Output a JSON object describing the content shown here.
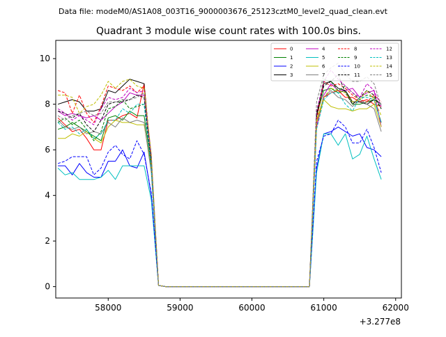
{
  "figure": {
    "suptitle": "Data file: modeM0/AS1A08_003T16_9000003676_25123cztM0_level2_quad_clean.evt",
    "title": "Quadrant 3 module wise count rates with 100.0s bins.",
    "offset_label": "+3.277e8"
  },
  "chart_data": {
    "type": "line",
    "title": "Quadrant 3 module wise count rates with 100.0s bins.",
    "xlabel": "",
    "ylabel": "",
    "x_offset": 327700000,
    "xlim": [
      57270,
      62080
    ],
    "ylim": [
      -0.5,
      10.8
    ],
    "xticks": [
      58000,
      59000,
      60000,
      61000,
      62000
    ],
    "xtick_labels": [
      "58000",
      "59000",
      "60000",
      "61000",
      "62000"
    ],
    "yticks": [
      0,
      2,
      4,
      6,
      8,
      10
    ],
    "ytick_labels": [
      "0",
      "2",
      "4",
      "6",
      "8",
      "10"
    ],
    "legend_position": "top-right",
    "grid": false,
    "x": [
      57300,
      57400,
      57500,
      57600,
      57700,
      57800,
      57900,
      58000,
      58100,
      58200,
      58300,
      58400,
      58500,
      58600,
      58700,
      58800,
      58900,
      59000,
      59100,
      59200,
      59300,
      59400,
      59500,
      59600,
      59700,
      59800,
      59900,
      60000,
      60100,
      60200,
      60300,
      60400,
      60500,
      60600,
      60700,
      60800,
      60900,
      61000,
      61100,
      61200,
      61300,
      61400,
      61500,
      61600,
      61700,
      61800
    ],
    "series": [
      {
        "name": "0",
        "color": "#ff0000",
        "dash": false,
        "values": [
          7.4,
          7.1,
          6.8,
          6.9,
          6.5,
          6.0,
          6.0,
          7.3,
          7.3,
          7.5,
          7.6,
          7.4,
          8.9,
          5.5,
          0.05,
          0,
          0,
          0,
          0,
          0,
          0,
          0,
          0,
          0,
          0,
          0,
          0,
          0,
          0,
          0,
          0,
          0,
          0,
          0,
          0,
          0,
          7.0,
          8.3,
          8.5,
          8.6,
          8.3,
          8.3,
          8.1,
          8.2,
          8.0,
          7.9
        ]
      },
      {
        "name": "1",
        "color": "#008000",
        "dash": false,
        "values": [
          6.9,
          7.0,
          7.2,
          7.0,
          6.8,
          6.6,
          6.4,
          7.4,
          7.5,
          7.3,
          7.7,
          7.5,
          7.5,
          5.3,
          0.05,
          0,
          0,
          0,
          0,
          0,
          0,
          0,
          0,
          0,
          0,
          0,
          0,
          0,
          0,
          0,
          0,
          0,
          0,
          0,
          0,
          0,
          7.5,
          8.6,
          8.7,
          8.5,
          8.6,
          8.0,
          8.0,
          8.1,
          8.2,
          7.2
        ]
      },
      {
        "name": "2",
        "color": "#0000ff",
        "dash": false,
        "values": [
          5.3,
          5.3,
          4.9,
          5.4,
          5.0,
          4.8,
          4.8,
          5.5,
          5.5,
          6.0,
          5.3,
          5.2,
          5.9,
          4.0,
          0.05,
          0,
          0,
          0,
          0,
          0,
          0,
          0,
          0,
          0,
          0,
          0,
          0,
          0,
          0,
          0,
          0,
          0,
          0,
          0,
          0,
          0,
          5.2,
          6.7,
          6.8,
          7.0,
          6.8,
          6.6,
          6.7,
          6.1,
          6.0,
          5.7
        ]
      },
      {
        "name": "3",
        "color": "#000000",
        "dash": false,
        "values": [
          8.0,
          8.1,
          8.2,
          8.1,
          7.7,
          7.7,
          7.8,
          8.6,
          8.5,
          8.8,
          9.1,
          9.0,
          8.9,
          5.5,
          0.05,
          0,
          0,
          0,
          0,
          0,
          0,
          0,
          0,
          0,
          0,
          0,
          0,
          0,
          0,
          0,
          0,
          0,
          0,
          0,
          0,
          0,
          7.5,
          8.9,
          9.0,
          8.7,
          8.6,
          8.1,
          8.1,
          8.0,
          8.2,
          8.0
        ]
      },
      {
        "name": "4",
        "color": "#bf00bf",
        "dash": false,
        "values": [
          7.7,
          7.5,
          7.6,
          7.5,
          7.4,
          7.5,
          7.3,
          7.6,
          7.9,
          8.1,
          8.5,
          8.4,
          8.4,
          5.6,
          0.05,
          0,
          0,
          0,
          0,
          0,
          0,
          0,
          0,
          0,
          0,
          0,
          0,
          0,
          0,
          0,
          0,
          0,
          0,
          0,
          0,
          0,
          7.0,
          8.4,
          8.9,
          8.6,
          8.6,
          8.7,
          8.3,
          8.5,
          8.6,
          7.0
        ]
      },
      {
        "name": "5",
        "color": "#00bfbf",
        "dash": false,
        "values": [
          5.2,
          4.9,
          5.0,
          4.7,
          4.7,
          4.7,
          4.8,
          5.1,
          4.7,
          5.3,
          5.3,
          5.3,
          5.3,
          3.8,
          0.05,
          0,
          0,
          0,
          0,
          0,
          0,
          0,
          0,
          0,
          0,
          0,
          0,
          0,
          0,
          0,
          0,
          0,
          0,
          0,
          0,
          0,
          5.0,
          6.7,
          6.7,
          6.2,
          6.7,
          5.6,
          5.8,
          6.6,
          5.6,
          4.7
        ]
      },
      {
        "name": "6",
        "color": "#bfbf00",
        "dash": false,
        "values": [
          6.5,
          6.5,
          6.7,
          6.6,
          6.8,
          6.5,
          6.3,
          7.0,
          7.3,
          7.2,
          7.2,
          7.1,
          7.1,
          5.2,
          0.05,
          0,
          0,
          0,
          0,
          0,
          0,
          0,
          0,
          0,
          0,
          0,
          0,
          0,
          0,
          0,
          0,
          0,
          0,
          0,
          0,
          0,
          7.2,
          8.2,
          7.9,
          7.8,
          7.8,
          7.7,
          7.8,
          7.8,
          8.0,
          7.0
        ]
      },
      {
        "name": "7",
        "color": "#7f7f7f",
        "dash": false,
        "values": [
          7.3,
          7.0,
          6.9,
          7.0,
          6.7,
          6.8,
          6.7,
          7.2,
          7.0,
          7.4,
          7.2,
          7.3,
          7.2,
          5.0,
          0.05,
          0,
          0,
          0,
          0,
          0,
          0,
          0,
          0,
          0,
          0,
          0,
          0,
          0,
          0,
          0,
          0,
          0,
          0,
          0,
          0,
          0,
          7.3,
          8.3,
          8.6,
          8.3,
          8.2,
          7.9,
          8.2,
          8.0,
          7.8,
          6.8
        ]
      },
      {
        "name": "8",
        "color": "#ff0000",
        "dash": true,
        "values": [
          8.6,
          8.5,
          7.6,
          8.4,
          7.6,
          7.2,
          7.9,
          8.8,
          8.7,
          8.6,
          8.8,
          8.5,
          8.8,
          5.6,
          0.05,
          0,
          0,
          0,
          0,
          0,
          0,
          0,
          0,
          0,
          0,
          0,
          0,
          0,
          0,
          0,
          0,
          0,
          0,
          0,
          0,
          0,
          7.3,
          9.0,
          8.8,
          8.9,
          8.7,
          8.4,
          8.2,
          8.1,
          8.4,
          8.1
        ]
      },
      {
        "name": "9",
        "color": "#008000",
        "dash": true,
        "values": [
          7.2,
          7.4,
          7.1,
          7.3,
          6.9,
          6.4,
          6.8,
          7.8,
          7.9,
          8.2,
          7.8,
          7.9,
          8.0,
          5.4,
          0.05,
          0,
          0,
          0,
          0,
          0,
          0,
          0,
          0,
          0,
          0,
          0,
          0,
          0,
          0,
          0,
          0,
          0,
          0,
          0,
          0,
          0,
          7.6,
          9.1,
          9.0,
          8.6,
          8.8,
          8.5,
          8.2,
          8.4,
          8.3,
          7.8
        ]
      },
      {
        "name": "10",
        "color": "#0000ff",
        "dash": true,
        "values": [
          5.4,
          5.5,
          5.7,
          5.7,
          5.7,
          4.9,
          5.2,
          5.9,
          6.2,
          5.8,
          5.6,
          6.4,
          5.8,
          4.1,
          0.05,
          0,
          0,
          0,
          0,
          0,
          0,
          0,
          0,
          0,
          0,
          0,
          0,
          0,
          0,
          0,
          0,
          0,
          0,
          0,
          0,
          0,
          5.5,
          6.6,
          6.7,
          7.3,
          7.0,
          6.3,
          6.3,
          6.9,
          6.1,
          5.0
        ]
      },
      {
        "name": "11",
        "color": "#000000",
        "dash": true,
        "values": [
          7.7,
          7.6,
          7.4,
          7.6,
          7.1,
          6.8,
          7.3,
          8.0,
          8.1,
          8.1,
          8.2,
          8.4,
          8.3,
          5.3,
          0.05,
          0,
          0,
          0,
          0,
          0,
          0,
          0,
          0,
          0,
          0,
          0,
          0,
          0,
          0,
          0,
          0,
          0,
          0,
          0,
          0,
          0,
          7.6,
          8.8,
          9.0,
          9.3,
          8.5,
          8.0,
          8.3,
          8.6,
          8.4,
          7.8
        ]
      },
      {
        "name": "12",
        "color": "#bf00bf",
        "dash": true,
        "values": [
          7.8,
          7.6,
          7.3,
          7.5,
          7.3,
          7.1,
          7.8,
          8.3,
          8.2,
          8.3,
          8.7,
          8.5,
          8.6,
          5.8,
          0.05,
          0,
          0,
          0,
          0,
          0,
          0,
          0,
          0,
          0,
          0,
          0,
          0,
          0,
          0,
          0,
          0,
          0,
          0,
          0,
          0,
          0,
          7.7,
          9.0,
          9.5,
          9.1,
          8.8,
          8.5,
          8.3,
          8.9,
          8.6,
          7.9
        ]
      },
      {
        "name": "13",
        "color": "#00bfbf",
        "dash": true,
        "values": [
          7.2,
          6.9,
          7.0,
          6.7,
          6.9,
          6.5,
          6.7,
          7.3,
          7.3,
          7.8,
          7.6,
          8.0,
          8.0,
          5.2,
          0.05,
          0,
          0,
          0,
          0,
          0,
          0,
          0,
          0,
          0,
          0,
          0,
          0,
          0,
          0,
          0,
          0,
          0,
          0,
          0,
          0,
          0,
          6.9,
          8.2,
          8.5,
          8.5,
          8.0,
          7.7,
          8.3,
          8.3,
          8.2,
          7.2
        ]
      },
      {
        "name": "14",
        "color": "#bfbf00",
        "dash": true,
        "values": [
          8.4,
          8.4,
          8.3,
          7.6,
          7.9,
          8.0,
          8.4,
          9.0,
          8.7,
          9.0,
          9.1,
          8.8,
          8.7,
          5.8,
          0.05,
          0,
          0,
          0,
          0,
          0,
          0,
          0,
          0,
          0,
          0,
          0,
          0,
          0,
          0,
          0,
          0,
          0,
          0,
          0,
          0,
          0,
          7.3,
          8.3,
          8.7,
          8.6,
          8.5,
          8.1,
          8.2,
          8.6,
          8.2,
          7.5
        ]
      },
      {
        "name": "15",
        "color": "#7f7f7f",
        "dash": true,
        "values": [
          7.5,
          7.3,
          7.5,
          7.6,
          7.7,
          7.5,
          7.6,
          8.1,
          8.1,
          8.2,
          8.2,
          8.3,
          8.5,
          5.7,
          0.05,
          0,
          0,
          0,
          0,
          0,
          0,
          0,
          0,
          0,
          0,
          0,
          0,
          0,
          0,
          0,
          0,
          0,
          0,
          0,
          0,
          0,
          8.1,
          9.3,
          9.6,
          9.8,
          9.3,
          9.0,
          9.0,
          9.2,
          8.9,
          7.9
        ]
      }
    ]
  }
}
